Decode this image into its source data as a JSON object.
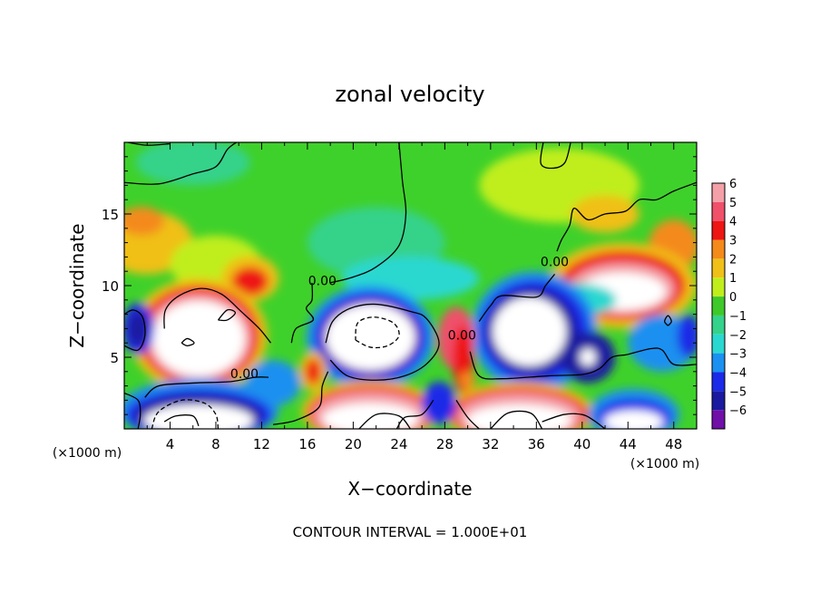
{
  "chart_data": {
    "type": "heatmap",
    "title": "zonal velocity",
    "xlabel": "X−coordinate",
    "ylabel": "Z−coordinate",
    "x_unit_left": "(×1000 m)",
    "x_unit_right": "(×1000 m)",
    "footer": "CONTOUR INTERVAL = 1.000E+01",
    "xlim": [
      0,
      50
    ],
    "ylim": [
      0,
      20
    ],
    "x_ticks": [
      {
        "value": 4,
        "label": "4"
      },
      {
        "value": 8,
        "label": "8"
      },
      {
        "value": 12,
        "label": "12"
      },
      {
        "value": 16,
        "label": "16"
      },
      {
        "value": 20,
        "label": "20"
      },
      {
        "value": 24,
        "label": "24"
      },
      {
        "value": 28,
        "label": "28"
      },
      {
        "value": 32,
        "label": "32"
      },
      {
        "value": 36,
        "label": "36"
      },
      {
        "value": 40,
        "label": "40"
      },
      {
        "value": 44,
        "label": "44"
      },
      {
        "value": 48,
        "label": "48"
      }
    ],
    "y_ticks": [
      {
        "value": 5,
        "label": "5"
      },
      {
        "value": 10,
        "label": "10"
      },
      {
        "value": 15,
        "label": "15"
      }
    ],
    "colorbar": {
      "levels": [
        {
          "label": "6",
          "color": "#f4a0a8"
        },
        {
          "label": "5",
          "color": "#f0506a"
        },
        {
          "label": "4",
          "color": "#ee1515"
        },
        {
          "label": "3",
          "color": "#f48a1a"
        },
        {
          "label": "2",
          "color": "#f0c018"
        },
        {
          "label": "1",
          "color": "#c0ee1c"
        },
        {
          "label": "0",
          "color": "#3ec82a"
        },
        {
          "label": "−1",
          "color": "#34d28a"
        },
        {
          "label": "−2",
          "color": "#2ad8d0"
        },
        {
          "label": "−3",
          "color": "#1a90f0"
        },
        {
          "label": "−4",
          "color": "#1a2ae8"
        },
        {
          "label": "−5",
          "color": "#1a1aa0"
        },
        {
          "label": "−6",
          "color": "#7010a8"
        }
      ]
    },
    "contour_labels": [
      {
        "text": "0.00",
        "x": 17.3,
        "y": 10.3
      },
      {
        "text": "0.00",
        "x": 10.5,
        "y": 3.8
      },
      {
        "text": "0.00",
        "x": 29.5,
        "y": 6.5
      },
      {
        "text": "0.00",
        "x": 37.6,
        "y": 11.6
      }
    ],
    "background_color": "#3fd12b",
    "blobs": [
      {
        "x": 2,
        "y": 13,
        "rx": 4,
        "ry": 2.2,
        "color": "#f0c018"
      },
      {
        "x": 1.5,
        "y": 14.5,
        "rx": 2,
        "ry": 1,
        "color": "#f48a1a"
      },
      {
        "x": 6,
        "y": 18.6,
        "rx": 5,
        "ry": 1.6,
        "color": "#34d28a"
      },
      {
        "x": 8,
        "y": 11.5,
        "rx": 4,
        "ry": 2,
        "color": "#c0ee1c"
      },
      {
        "x": 11,
        "y": 10.5,
        "rx": 2.5,
        "ry": 1.6,
        "color": "#f0c018"
      },
      {
        "x": 11,
        "y": 10.3,
        "rx": 1.6,
        "ry": 1,
        "color": "#ee1515"
      },
      {
        "x": 22,
        "y": 13,
        "rx": 6,
        "ry": 2.5,
        "color": "#34d28a"
      },
      {
        "x": 25,
        "y": 10.5,
        "rx": 6,
        "ry": 1.5,
        "color": "#2ad8d0"
      },
      {
        "x": 38,
        "y": 17,
        "rx": 7,
        "ry": 2.6,
        "color": "#c0ee1c"
      },
      {
        "x": 42,
        "y": 15,
        "rx": 3,
        "ry": 1.3,
        "color": "#f0c018"
      },
      {
        "x": 48,
        "y": 12.8,
        "rx": 2.2,
        "ry": 1.8,
        "color": "#f48a1a"
      },
      {
        "x": 43.5,
        "y": 10,
        "rx": 6.5,
        "ry": 3,
        "color": "#f0c018"
      },
      {
        "x": 43.5,
        "y": 10,
        "rx": 5.5,
        "ry": 2.4,
        "color": "#ee1515"
      },
      {
        "x": 43.5,
        "y": 9.8,
        "rx": 4.6,
        "ry": 1.8,
        "color": "#f4a0a8"
      },
      {
        "x": 43.5,
        "y": 9.6,
        "rx": 3.8,
        "ry": 1.3,
        "color": "#ffffff"
      },
      {
        "x": 39,
        "y": 9,
        "rx": 4,
        "ry": 1.2,
        "color": "#2ad8d0"
      },
      {
        "x": 35.8,
        "y": 6.8,
        "rx": 5.5,
        "ry": 4.2,
        "color": "#1a90f0"
      },
      {
        "x": 35.8,
        "y": 6.8,
        "rx": 4.8,
        "ry": 3.6,
        "color": "#1a2ae8"
      },
      {
        "x": 35.6,
        "y": 6.8,
        "rx": 4,
        "ry": 3,
        "color": "#1a1aa0"
      },
      {
        "x": 35.4,
        "y": 6.8,
        "rx": 3.2,
        "ry": 2.4,
        "color": "#ffffff"
      },
      {
        "x": 40.5,
        "y": 5,
        "rx": 2.4,
        "ry": 1.8,
        "color": "#1a1aa0"
      },
      {
        "x": 40.5,
        "y": 5,
        "rx": 0.7,
        "ry": 0.6,
        "color": "#ffffff"
      },
      {
        "x": 21.5,
        "y": 6.4,
        "rx": 5.6,
        "ry": 3.6,
        "color": "#1a90f0"
      },
      {
        "x": 21.5,
        "y": 6.4,
        "rx": 4.9,
        "ry": 3.1,
        "color": "#1a2ae8"
      },
      {
        "x": 21.5,
        "y": 6.4,
        "rx": 4.3,
        "ry": 2.6,
        "color": "#7010a8"
      },
      {
        "x": 21.5,
        "y": 6.4,
        "rx": 3.9,
        "ry": 2.3,
        "color": "#ffffff"
      },
      {
        "x": 29,
        "y": 6.3,
        "rx": 1.6,
        "ry": 2.2,
        "color": "#f0506a"
      },
      {
        "x": 29.6,
        "y": 4.8,
        "rx": 0.9,
        "ry": 2.4,
        "color": "#ee1515"
      },
      {
        "x": 30,
        "y": 3.4,
        "rx": 0.7,
        "ry": 0.6,
        "color": "#f48a1a"
      },
      {
        "x": 6.5,
        "y": 6.5,
        "rx": 6,
        "ry": 4,
        "color": "#f0c018"
      },
      {
        "x": 6.5,
        "y": 6.5,
        "rx": 5.3,
        "ry": 3.5,
        "color": "#ee1515"
      },
      {
        "x": 6.5,
        "y": 6.4,
        "rx": 4.6,
        "ry": 3,
        "color": "#f4a0a8"
      },
      {
        "x": 6.5,
        "y": 6.3,
        "rx": 4,
        "ry": 2.6,
        "color": "#ffffff"
      },
      {
        "x": 1.2,
        "y": 7,
        "rx": 1.4,
        "ry": 1.8,
        "color": "#1a2ae8"
      },
      {
        "x": 1.2,
        "y": 7,
        "rx": 0.9,
        "ry": 1.2,
        "color": "#1a1aa0"
      },
      {
        "x": 13,
        "y": 3.2,
        "rx": 2.4,
        "ry": 1.6,
        "color": "#1a90f0"
      },
      {
        "x": 16.5,
        "y": 4,
        "rx": 1.2,
        "ry": 1.4,
        "color": "#f0c018"
      },
      {
        "x": 16.5,
        "y": 4,
        "rx": 0.7,
        "ry": 0.9,
        "color": "#ee1515"
      },
      {
        "x": 47,
        "y": 6,
        "rx": 3,
        "ry": 2,
        "color": "#1a90f0"
      },
      {
        "x": 49.3,
        "y": 6.5,
        "rx": 1,
        "ry": 1.5,
        "color": "#1a2ae8"
      },
      {
        "x": 6.5,
        "y": 1.3,
        "rx": 7,
        "ry": 2.2,
        "color": "#1a90f0"
      },
      {
        "x": 6.5,
        "y": 1,
        "rx": 6.4,
        "ry": 1.8,
        "color": "#1a2ae8"
      },
      {
        "x": 6.5,
        "y": 0.9,
        "rx": 5.6,
        "ry": 1.5,
        "color": "#1a1aa0"
      },
      {
        "x": 6.5,
        "y": 0.6,
        "rx": 4.8,
        "ry": 1.1,
        "color": "#ffffff"
      },
      {
        "x": 21.5,
        "y": 1.2,
        "rx": 6,
        "ry": 2.2,
        "color": "#f0c018"
      },
      {
        "x": 21.5,
        "y": 1.1,
        "rx": 5.5,
        "ry": 1.9,
        "color": "#ee1515"
      },
      {
        "x": 21.5,
        "y": 1,
        "rx": 5,
        "ry": 1.6,
        "color": "#f4a0a8"
      },
      {
        "x": 21.5,
        "y": 0.7,
        "rx": 4.2,
        "ry": 1.1,
        "color": "#ffffff"
      },
      {
        "x": 34.5,
        "y": 1.1,
        "rx": 6.5,
        "ry": 2.2,
        "color": "#f0c018"
      },
      {
        "x": 34.5,
        "y": 1,
        "rx": 6,
        "ry": 1.9,
        "color": "#ee1515"
      },
      {
        "x": 34.5,
        "y": 0.9,
        "rx": 5.4,
        "ry": 1.6,
        "color": "#f4a0a8"
      },
      {
        "x": 34.5,
        "y": 0.6,
        "rx": 4.6,
        "ry": 1.1,
        "color": "#ffffff"
      },
      {
        "x": 44.5,
        "y": 1,
        "rx": 4,
        "ry": 1.8,
        "color": "#1a90f0"
      },
      {
        "x": 44.5,
        "y": 0.8,
        "rx": 3.3,
        "ry": 1.3,
        "color": "#1a2ae8"
      },
      {
        "x": 44.5,
        "y": 0.5,
        "rx": 2.6,
        "ry": 0.8,
        "color": "#ffffff"
      },
      {
        "x": 27.5,
        "y": 1.8,
        "rx": 1.5,
        "ry": 1.5,
        "color": "#1a2ae8"
      }
    ],
    "contours": [
      {
        "style": "solid",
        "points": [
          [
            0,
            17.2
          ],
          [
            3,
            17.1
          ],
          [
            6,
            17.8
          ],
          [
            8,
            18.3
          ],
          [
            9,
            19.5
          ],
          [
            9.8,
            20
          ]
        ]
      },
      {
        "style": "solid",
        "points": [
          [
            0.3,
            20
          ],
          [
            2,
            19.8
          ],
          [
            4,
            19.9
          ]
        ]
      },
      {
        "style": "solid",
        "points": [
          [
            18,
            10.2
          ],
          [
            20,
            10.6
          ],
          [
            22,
            11.3
          ],
          [
            24,
            12.8
          ],
          [
            24.6,
            15
          ],
          [
            24.3,
            17.3
          ],
          [
            24,
            20
          ]
        ]
      },
      {
        "style": "solid",
        "points": [
          [
            36.6,
            20
          ],
          [
            36.4,
            18.5
          ],
          [
            37.5,
            18.2
          ],
          [
            38.5,
            18.6
          ],
          [
            39,
            20
          ]
        ]
      },
      {
        "style": "solid",
        "points": [
          [
            50,
            17.2
          ],
          [
            48,
            16.6
          ],
          [
            46.5,
            16
          ],
          [
            45,
            16
          ],
          [
            43.8,
            15.2
          ],
          [
            42,
            15
          ],
          [
            40.5,
            14.6
          ],
          [
            39.3,
            15.4
          ],
          [
            38.9,
            14.2
          ],
          [
            38.2,
            13.2
          ],
          [
            37.8,
            12.4
          ]
        ]
      },
      {
        "style": "solid",
        "points": [
          [
            37.6,
            10.8
          ],
          [
            36.8,
            10
          ],
          [
            36,
            9.2
          ],
          [
            33,
            9.3
          ],
          [
            32,
            8.6
          ],
          [
            31,
            7.5
          ]
        ]
      },
      {
        "style": "solid",
        "points": [
          [
            16.4,
            10.2
          ],
          [
            16.4,
            9
          ],
          [
            15.9,
            8.4
          ],
          [
            16.5,
            7.6
          ],
          [
            15,
            7
          ],
          [
            14.6,
            6
          ]
        ]
      },
      {
        "style": "solid",
        "points": [
          [
            3.5,
            7
          ],
          [
            3.6,
            8.3
          ],
          [
            4.8,
            9.3
          ],
          [
            6.7,
            9.8
          ],
          [
            8.5,
            9.4
          ],
          [
            10.2,
            8.2
          ],
          [
            11.8,
            7
          ],
          [
            12.8,
            6
          ]
        ]
      },
      {
        "style": "solid",
        "points": [
          [
            0,
            8
          ],
          [
            0.8,
            8.3
          ],
          [
            1.6,
            7.8
          ],
          [
            1.8,
            6.5
          ],
          [
            1.2,
            5.5
          ],
          [
            0,
            5.8
          ]
        ]
      },
      {
        "style": "solid",
        "points": [
          [
            0,
            2.5
          ],
          [
            1.2,
            2
          ],
          [
            1.4,
            1
          ],
          [
            1.2,
            0
          ]
        ]
      },
      {
        "style": "solid",
        "points": [
          [
            12.6,
            3.6
          ],
          [
            11.4,
            3.6
          ],
          [
            9.3,
            3.3
          ],
          [
            6,
            3.2
          ],
          [
            3,
            3
          ],
          [
            1.8,
            2.2
          ]
        ]
      },
      {
        "style": "solid",
        "points": [
          [
            13,
            0.3
          ],
          [
            15,
            0.6
          ],
          [
            17,
            1.5
          ],
          [
            17.3,
            3
          ],
          [
            17.8,
            4
          ]
        ]
      },
      {
        "style": "solid",
        "points": [
          [
            18,
            4.8
          ],
          [
            19.5,
            3.7
          ],
          [
            22,
            3.4
          ],
          [
            24.5,
            3.7
          ],
          [
            26.5,
            4.6
          ],
          [
            27.5,
            6
          ],
          [
            26.4,
            7.7
          ],
          [
            25,
            8.2
          ],
          [
            22,
            8.7
          ],
          [
            19.7,
            8.4
          ],
          [
            18.2,
            7.5
          ],
          [
            17.6,
            6
          ]
        ]
      },
      {
        "style": "solid",
        "points": [
          [
            30.2,
            5.4
          ],
          [
            31,
            3.7
          ],
          [
            33,
            3.5
          ],
          [
            37,
            3.7
          ],
          [
            40,
            3.8
          ],
          [
            41.5,
            4.2
          ],
          [
            42.6,
            5
          ],
          [
            44,
            5.2
          ],
          [
            46,
            5.6
          ],
          [
            47,
            5.5
          ],
          [
            48,
            4.5
          ],
          [
            50,
            4.5
          ]
        ]
      },
      {
        "style": "solid",
        "points": [
          [
            36.5,
            0.5
          ],
          [
            38.4,
            1
          ],
          [
            40,
            1
          ],
          [
            41,
            0.6
          ],
          [
            42,
            0
          ]
        ]
      },
      {
        "style": "solid",
        "points": [
          [
            23.8,
            0
          ],
          [
            24.5,
            0.8
          ],
          [
            26,
            1
          ],
          [
            27,
            2
          ]
        ]
      },
      {
        "style": "solid",
        "points": [
          [
            29,
            2
          ],
          [
            30,
            0.8
          ],
          [
            31,
            0
          ]
        ]
      },
      {
        "style": "solid",
        "points": [
          [
            47.5,
            7.2
          ],
          [
            47.2,
            7.5
          ],
          [
            47.5,
            7.9
          ],
          [
            47.8,
            7.5
          ],
          [
            47.5,
            7.2
          ]
        ]
      },
      {
        "style": "solid",
        "points": [
          [
            5,
            6
          ],
          [
            5.5,
            5.8
          ],
          [
            6.1,
            6
          ],
          [
            5.5,
            6.3
          ],
          [
            5,
            6
          ]
        ]
      },
      {
        "style": "solid",
        "points": [
          [
            8.2,
            7.6
          ],
          [
            9,
            7.6
          ],
          [
            9.7,
            8.1
          ],
          [
            9,
            8.3
          ],
          [
            8.2,
            7.6
          ]
        ]
      },
      {
        "style": "dashed",
        "points": [
          [
            20.2,
            6.2
          ],
          [
            21.5,
            5.7
          ],
          [
            23,
            5.8
          ],
          [
            24,
            6.5
          ],
          [
            23.5,
            7.4
          ],
          [
            21.8,
            7.8
          ],
          [
            20.4,
            7.4
          ],
          [
            20.2,
            6.2
          ]
        ]
      },
      {
        "style": "dashed",
        "points": [
          [
            2.4,
            0
          ],
          [
            3,
            1.2
          ],
          [
            5,
            2
          ],
          [
            7,
            1.8
          ],
          [
            8,
            1
          ],
          [
            8.2,
            0
          ]
        ]
      },
      {
        "style": "solid",
        "points": [
          [
            3.5,
            0.5
          ],
          [
            4.5,
            0.9
          ],
          [
            6,
            0.9
          ],
          [
            6.5,
            0.2
          ]
        ]
      },
      {
        "style": "solid",
        "points": [
          [
            20.5,
            0
          ],
          [
            22,
            1
          ],
          [
            24,
            0.9
          ],
          [
            25,
            0
          ]
        ]
      },
      {
        "style": "solid",
        "points": [
          [
            32,
            0
          ],
          [
            33.5,
            1.1
          ],
          [
            35.5,
            1.1
          ],
          [
            36.5,
            0
          ]
        ]
      }
    ]
  }
}
